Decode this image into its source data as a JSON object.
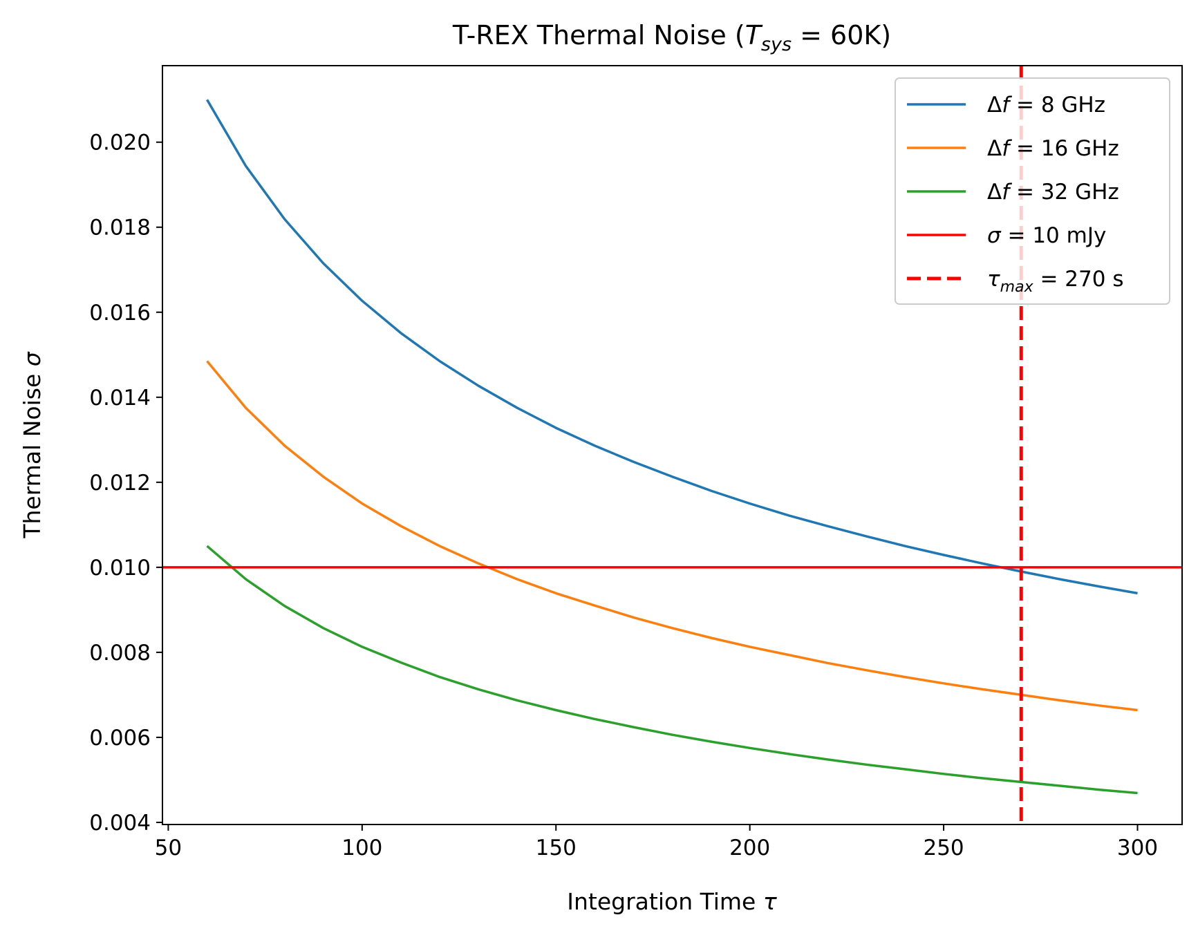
{
  "chart_data": {
    "type": "line",
    "title": {
      "prefix": "T-REX Thermal Noise (",
      "T": "T",
      "sub": "sys",
      "suffix": " = 60K)"
    },
    "xlabel": {
      "text": "Integration Time ",
      "symbol": "τ"
    },
    "ylabel": {
      "text": "Thermal Noise ",
      "symbol": "σ"
    },
    "xlim": [
      48.5,
      311.5
    ],
    "ylim": [
      0.00395,
      0.0218
    ],
    "xticks": [
      50,
      100,
      150,
      200,
      250,
      300
    ],
    "xtick_labels": [
      "50",
      "100",
      "150",
      "200",
      "250",
      "300"
    ],
    "yticks": [
      0.004,
      0.006,
      0.008,
      0.01,
      0.012,
      0.014,
      0.016,
      0.018,
      0.02
    ],
    "ytick_labels": [
      "0.004",
      "0.006",
      "0.008",
      "0.010",
      "0.012",
      "0.014",
      "0.016",
      "0.018",
      "0.020"
    ],
    "grid": false,
    "legend_position": "upper right",
    "x": [
      60,
      70,
      80,
      90,
      100,
      110,
      120,
      130,
      140,
      150,
      160,
      170,
      180,
      190,
      200,
      210,
      220,
      230,
      240,
      250,
      260,
      270,
      280,
      290,
      300
    ],
    "series": [
      {
        "name": "8 GHz",
        "legend": {
          "pre": "Δ",
          "var": "f",
          "rest": " = 8 GHz"
        },
        "color": "#1f77b4",
        "values": [
          0.021,
          0.01944,
          0.01819,
          0.01715,
          0.01627,
          0.01551,
          0.01485,
          0.01427,
          0.01375,
          0.01328,
          0.01286,
          0.01248,
          0.01213,
          0.0118,
          0.0115,
          0.01122,
          0.01097,
          0.01073,
          0.0105,
          0.01029,
          0.01009,
          0.0099,
          0.00972,
          0.00955,
          0.00939
        ]
      },
      {
        "name": "16 GHz",
        "legend": {
          "pre": "Δ",
          "var": "f",
          "rest": " = 16 GHz"
        },
        "color": "#ff7f0e",
        "values": [
          0.01485,
          0.01375,
          0.01286,
          0.01213,
          0.0115,
          0.01097,
          0.0105,
          0.01009,
          0.00972,
          0.00939,
          0.0091,
          0.00882,
          0.00857,
          0.00834,
          0.00813,
          0.00794,
          0.00775,
          0.00758,
          0.00742,
          0.00727,
          0.00713,
          0.007,
          0.00687,
          0.00675,
          0.00664
        ]
      },
      {
        "name": "32 GHz",
        "legend": {
          "pre": "Δ",
          "var": "f",
          "rest": " = 32 GHz"
        },
        "color": "#2ca02c",
        "values": [
          0.0105,
          0.00972,
          0.00909,
          0.00857,
          0.00813,
          0.00776,
          0.00742,
          0.00713,
          0.00687,
          0.00664,
          0.00643,
          0.00624,
          0.00606,
          0.0059,
          0.00575,
          0.00561,
          0.00548,
          0.00536,
          0.00525,
          0.00514,
          0.00504,
          0.00495,
          0.00486,
          0.00477,
          0.00469
        ]
      }
    ],
    "hline": {
      "name": "sigma-10-mJy",
      "y": 0.01,
      "color": "#ff0000",
      "legend": {
        "pre": "",
        "var": "σ",
        "rest": " = 10 mJy"
      }
    },
    "vline": {
      "name": "tau-max-270-s",
      "x": 270,
      "color": "#ff0000",
      "legend": {
        "pre": "",
        "var": "τ",
        "sub": "max",
        "rest": " = 270 s"
      }
    }
  }
}
